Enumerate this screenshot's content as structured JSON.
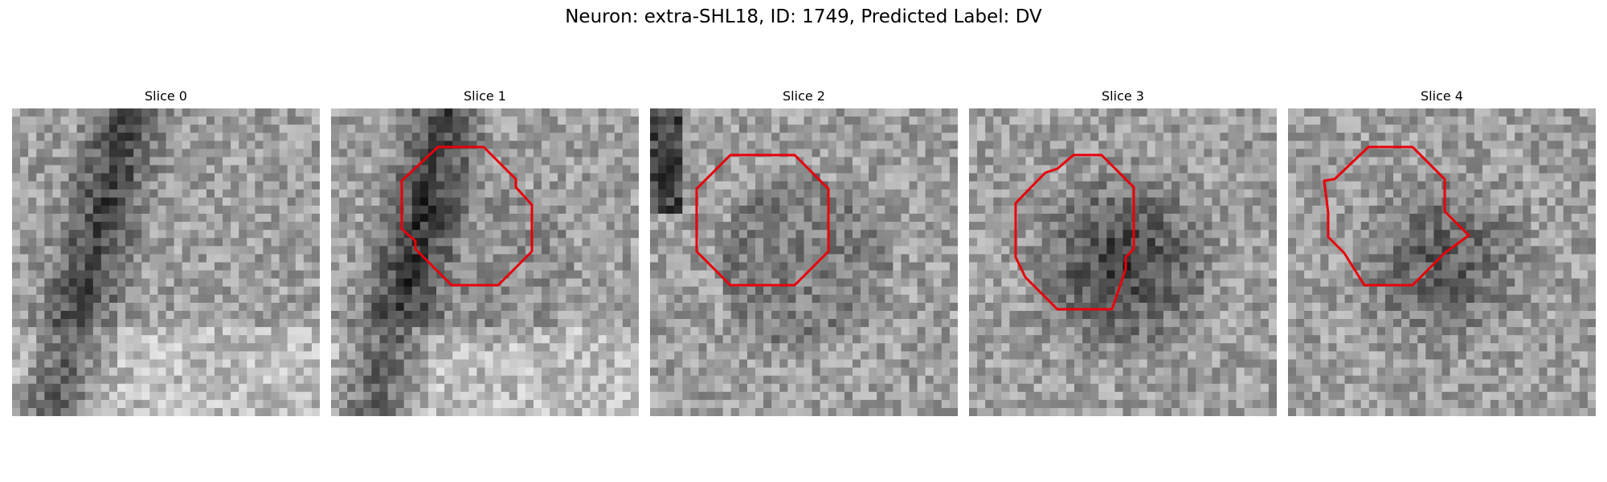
{
  "figure": {
    "title": "Neuron: extra-SHL18, ID: 1749, Predicted Label: DV"
  },
  "colors": {
    "contour": "#e8000b",
    "colormap": "gray"
  },
  "panels": [
    {
      "title": "Slice 0",
      "has_contour": false,
      "seed": 11,
      "style": "ridge"
    },
    {
      "title": "Slice 1",
      "has_contour": true,
      "seed": 23,
      "style": "ridge-blob"
    },
    {
      "title": "Slice 2",
      "has_contour": true,
      "seed": 37,
      "style": "blob-light"
    },
    {
      "title": "Slice 3",
      "has_contour": true,
      "seed": 51,
      "style": "blob-dark"
    },
    {
      "title": "Slice 4",
      "has_contour": true,
      "seed": 67,
      "style": "blob-medium"
    }
  ]
}
